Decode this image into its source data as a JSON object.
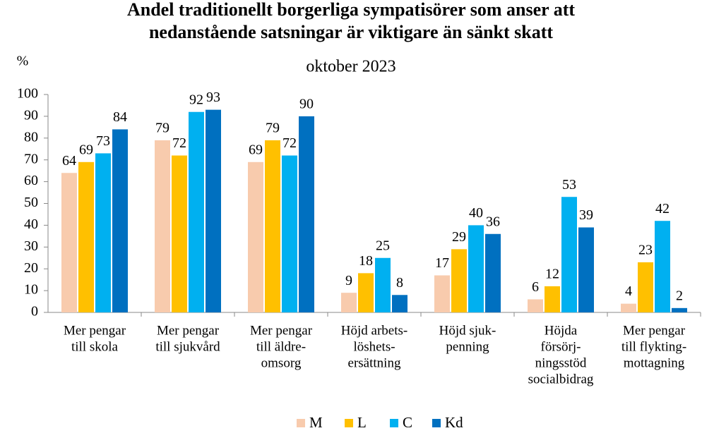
{
  "chart_data": {
    "type": "bar",
    "title": "Andel traditionellt borgerliga sympatisörer som anser att\nnedanstående satsningar är viktigare än sänkt skatt",
    "subtitle": "oktober 2023",
    "y_label": "%",
    "categories": [
      "Mer pengar\ntill skola",
      "Mer pengar\ntill sjukvård",
      "Mer pengar\ntill äldre-\nomsorg",
      "Höjd arbets-\nlöshets-\nersättning",
      "Höjd sjuk-\npenning",
      "Höjda\nförsörj-\nningsstöd\nsocialbidrag",
      "Mer pengar\ntill flykting-\nmottagning"
    ],
    "series": [
      {
        "name": "M",
        "color": "#f8cbad",
        "values": [
          64,
          79,
          69,
          9,
          17,
          6,
          4
        ]
      },
      {
        "name": "L",
        "color": "#ffc000",
        "values": [
          69,
          72,
          79,
          18,
          29,
          12,
          23
        ]
      },
      {
        "name": "C",
        "color": "#00b0f0",
        "values": [
          73,
          92,
          72,
          25,
          40,
          53,
          42
        ]
      },
      {
        "name": "Kd",
        "color": "#0070c0",
        "values": [
          84,
          93,
          90,
          8,
          36,
          39,
          2
        ]
      }
    ],
    "ylim": [
      0,
      100
    ],
    "yticks": [
      0,
      10,
      20,
      30,
      40,
      50,
      60,
      70,
      80,
      90,
      100
    ],
    "legend": "bottom"
  }
}
